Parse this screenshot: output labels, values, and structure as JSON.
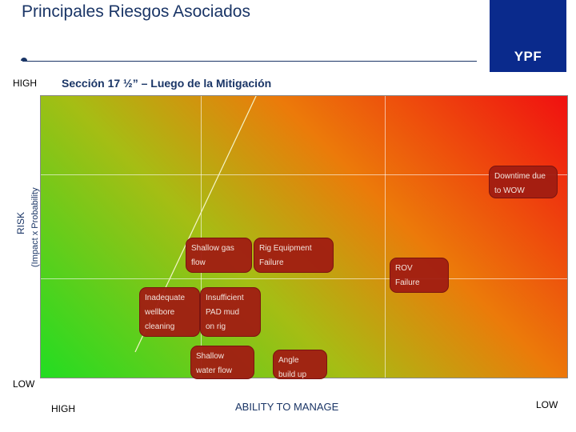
{
  "header": {
    "title": "Principales Riesgos Asociados",
    "subtitle": "Sección 17 ½” – Luego de la Mitigación",
    "logo_text": "YPF"
  },
  "axes": {
    "y_high": "HIGH",
    "y_low": "LOW",
    "y_title": "RISK",
    "y_subtitle": "(Impact x Probability",
    "x_high": "HIGH",
    "x_low": "LOW",
    "x_title": "ABILITY TO MANAGE"
  },
  "risks": [
    {
      "line1": "Downtime due",
      "line2": "to WOW"
    },
    {
      "line1": "Shallow gas",
      "line2": "flow"
    },
    {
      "line1": "Rig  Equipment",
      "line2": "Failure"
    },
    {
      "line1": "ROV",
      "line2": "Failure"
    },
    {
      "line1": "Inadequate",
      "line2": "wellbore",
      "line3": "cleaning"
    },
    {
      "line1": "Insufficient",
      "line2": "PAD mud",
      "line3": "on rig"
    },
    {
      "line1": "Shallow",
      "line2": "water flow"
    },
    {
      "line1": "Angle",
      "line2": "build up"
    }
  ],
  "colors": {
    "low_zone": "#22dd22",
    "mid_zone": "#ec7a0a",
    "high_zone": "#f01010",
    "risk_box": "#a01c12",
    "logo_bg": "#0a2a8c",
    "title_color": "#1a3566"
  }
}
